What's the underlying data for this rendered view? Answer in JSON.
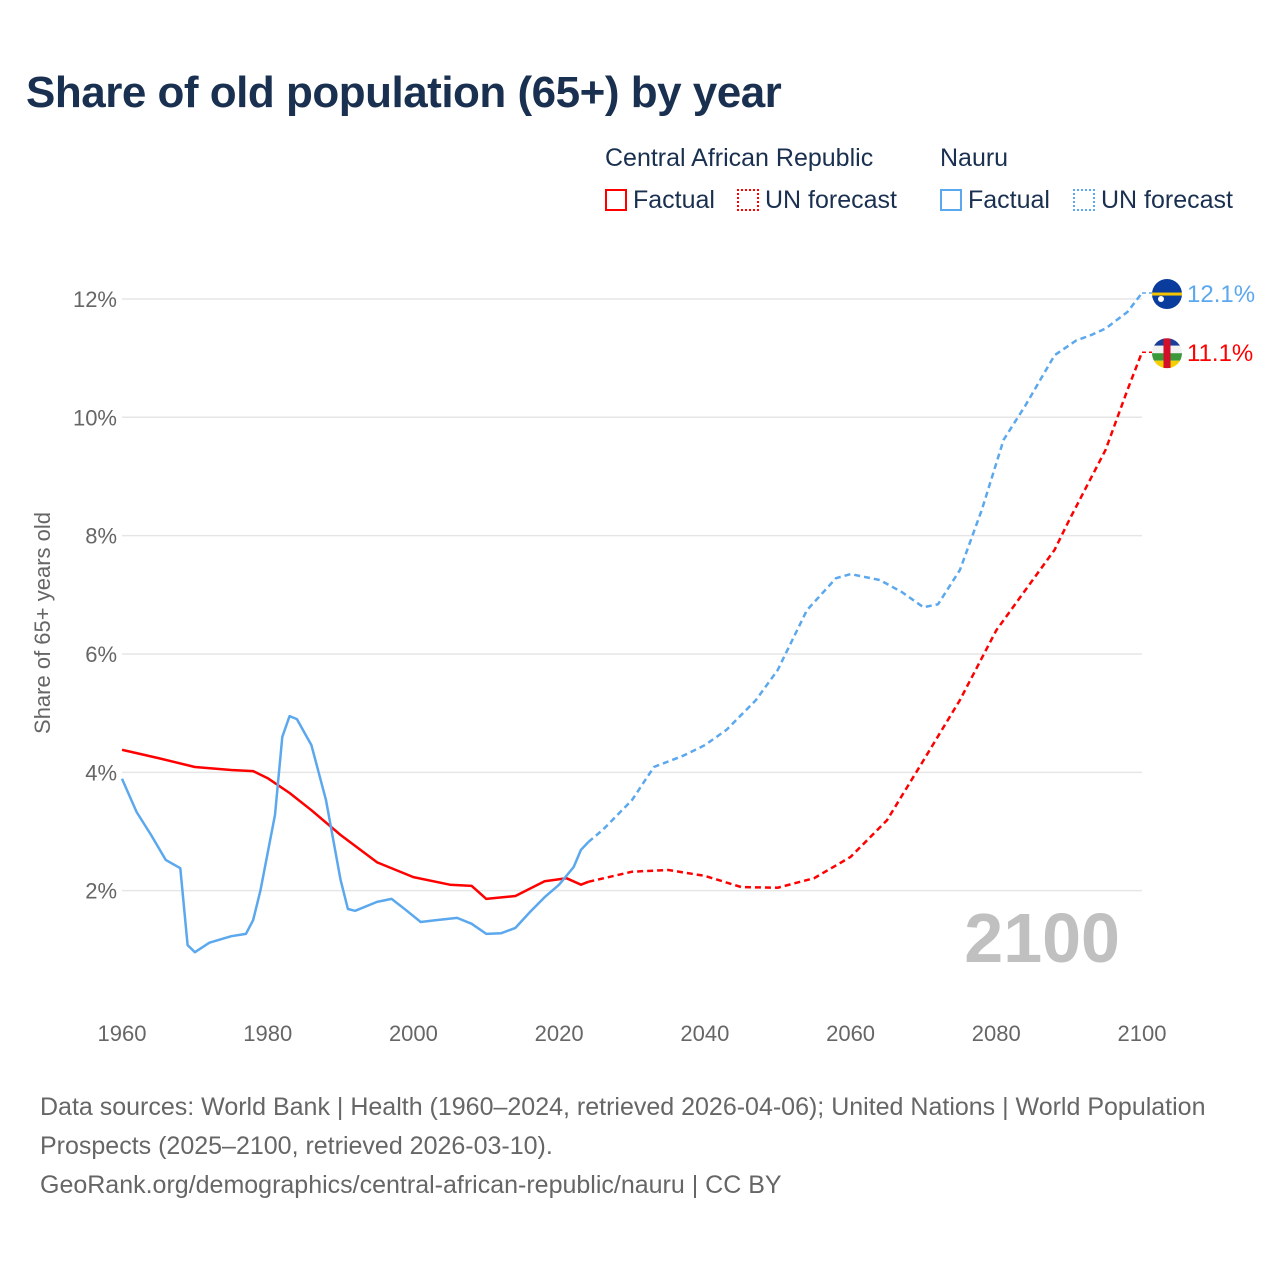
{
  "chart_data": {
    "type": "line",
    "title": "Share of old population (65+) by year",
    "ylabel": "Share of 65+ years old",
    "xlabel": "",
    "xlim": [
      1960,
      2100
    ],
    "ylim": [
      0,
      13
    ],
    "x_ticks": [
      "1960",
      "1980",
      "2000",
      "2020",
      "2040",
      "2060",
      "2080",
      "2100"
    ],
    "x_tick_values": [
      1960,
      1980,
      2000,
      2020,
      2040,
      2060,
      2080,
      2100
    ],
    "y_ticks": [
      "2%",
      "4%",
      "6%",
      "8%",
      "10%",
      "12%"
    ],
    "y_tick_values": [
      2,
      4,
      6,
      8,
      10,
      12
    ],
    "grid": true,
    "watermark_year": "2100",
    "legend": {
      "groups": [
        {
          "name": "Central African Republic",
          "factual": "Factual",
          "forecast": "UN forecast",
          "color": "#ff0000"
        },
        {
          "name": "Nauru",
          "factual": "Factual",
          "forecast": "UN forecast",
          "color": "#5ba8ee"
        }
      ],
      "placement": "top-right"
    },
    "series": [
      {
        "name": "Central African Republic",
        "color": "#ff0000",
        "end_label": "11.1%",
        "factual": [
          [
            1960,
            4.38
          ],
          [
            1965,
            4.24
          ],
          [
            1970,
            4.09
          ],
          [
            1975,
            4.04
          ],
          [
            1978,
            4.02
          ],
          [
            1980,
            3.9
          ],
          [
            1983,
            3.65
          ],
          [
            1986,
            3.36
          ],
          [
            1990,
            2.94
          ],
          [
            1995,
            2.48
          ],
          [
            2000,
            2.23
          ],
          [
            2005,
            2.1
          ],
          [
            2008,
            2.08
          ],
          [
            2010,
            1.86
          ],
          [
            2014,
            1.91
          ],
          [
            2018,
            2.16
          ],
          [
            2021,
            2.21
          ],
          [
            2023,
            2.1
          ],
          [
            2024,
            2.15
          ]
        ],
        "forecast": [
          [
            2024,
            2.15
          ],
          [
            2030,
            2.32
          ],
          [
            2035,
            2.35
          ],
          [
            2040,
            2.25
          ],
          [
            2045,
            2.06
          ],
          [
            2050,
            2.05
          ],
          [
            2055,
            2.21
          ],
          [
            2060,
            2.57
          ],
          [
            2065,
            3.19
          ],
          [
            2070,
            4.2
          ],
          [
            2075,
            5.22
          ],
          [
            2080,
            6.4
          ],
          [
            2085,
            7.25
          ],
          [
            2088,
            7.76
          ],
          [
            2090,
            8.26
          ],
          [
            2095,
            9.45
          ],
          [
            2098,
            10.46
          ],
          [
            2100,
            11.1
          ]
        ]
      },
      {
        "name": "Nauru",
        "color": "#5ba8ee",
        "end_label": "12.1%",
        "factual": [
          [
            1960,
            3.89
          ],
          [
            1962,
            3.33
          ],
          [
            1964,
            2.94
          ],
          [
            1966,
            2.52
          ],
          [
            1968,
            2.38
          ],
          [
            1969,
            1.08
          ],
          [
            1970,
            0.96
          ],
          [
            1972,
            1.12
          ],
          [
            1975,
            1.23
          ],
          [
            1977,
            1.27
          ],
          [
            1978,
            1.5
          ],
          [
            1979,
            2.0
          ],
          [
            1981,
            3.28
          ],
          [
            1982,
            4.6
          ],
          [
            1983,
            4.95
          ],
          [
            1984,
            4.9
          ],
          [
            1986,
            4.46
          ],
          [
            1988,
            3.53
          ],
          [
            1990,
            2.18
          ],
          [
            1991,
            1.69
          ],
          [
            1992,
            1.66
          ],
          [
            1995,
            1.81
          ],
          [
            1997,
            1.86
          ],
          [
            1999,
            1.67
          ],
          [
            2001,
            1.47
          ],
          [
            2003,
            1.5
          ],
          [
            2006,
            1.54
          ],
          [
            2008,
            1.44
          ],
          [
            2010,
            1.27
          ],
          [
            2012,
            1.28
          ],
          [
            2014,
            1.37
          ],
          [
            2016,
            1.64
          ],
          [
            2018,
            1.89
          ],
          [
            2020,
            2.1
          ],
          [
            2022,
            2.4
          ],
          [
            2023,
            2.69
          ],
          [
            2024,
            2.82
          ]
        ],
        "forecast": [
          [
            2024,
            2.82
          ],
          [
            2026,
            3.03
          ],
          [
            2030,
            3.53
          ],
          [
            2033,
            4.09
          ],
          [
            2037,
            4.28
          ],
          [
            2040,
            4.46
          ],
          [
            2043,
            4.72
          ],
          [
            2047,
            5.22
          ],
          [
            2050,
            5.73
          ],
          [
            2054,
            6.74
          ],
          [
            2058,
            7.28
          ],
          [
            2060,
            7.35
          ],
          [
            2064,
            7.25
          ],
          [
            2067,
            7.05
          ],
          [
            2070,
            6.79
          ],
          [
            2072,
            6.84
          ],
          [
            2075,
            7.42
          ],
          [
            2078,
            8.43
          ],
          [
            2081,
            9.62
          ],
          [
            2084,
            10.2
          ],
          [
            2088,
            11.05
          ],
          [
            2091,
            11.3
          ],
          [
            2093,
            11.39
          ],
          [
            2095,
            11.5
          ],
          [
            2098,
            11.78
          ],
          [
            2100,
            12.1
          ]
        ]
      }
    ]
  },
  "footer": {
    "sources": "Data sources: World Bank | Health (1960–2024, retrieved 2026-04-06); United Nations | World Population Prospects (2025–2100, retrieved 2026-03-10).",
    "link": "GeoRank.org/demographics/central-african-republic/nauru | CC BY"
  }
}
